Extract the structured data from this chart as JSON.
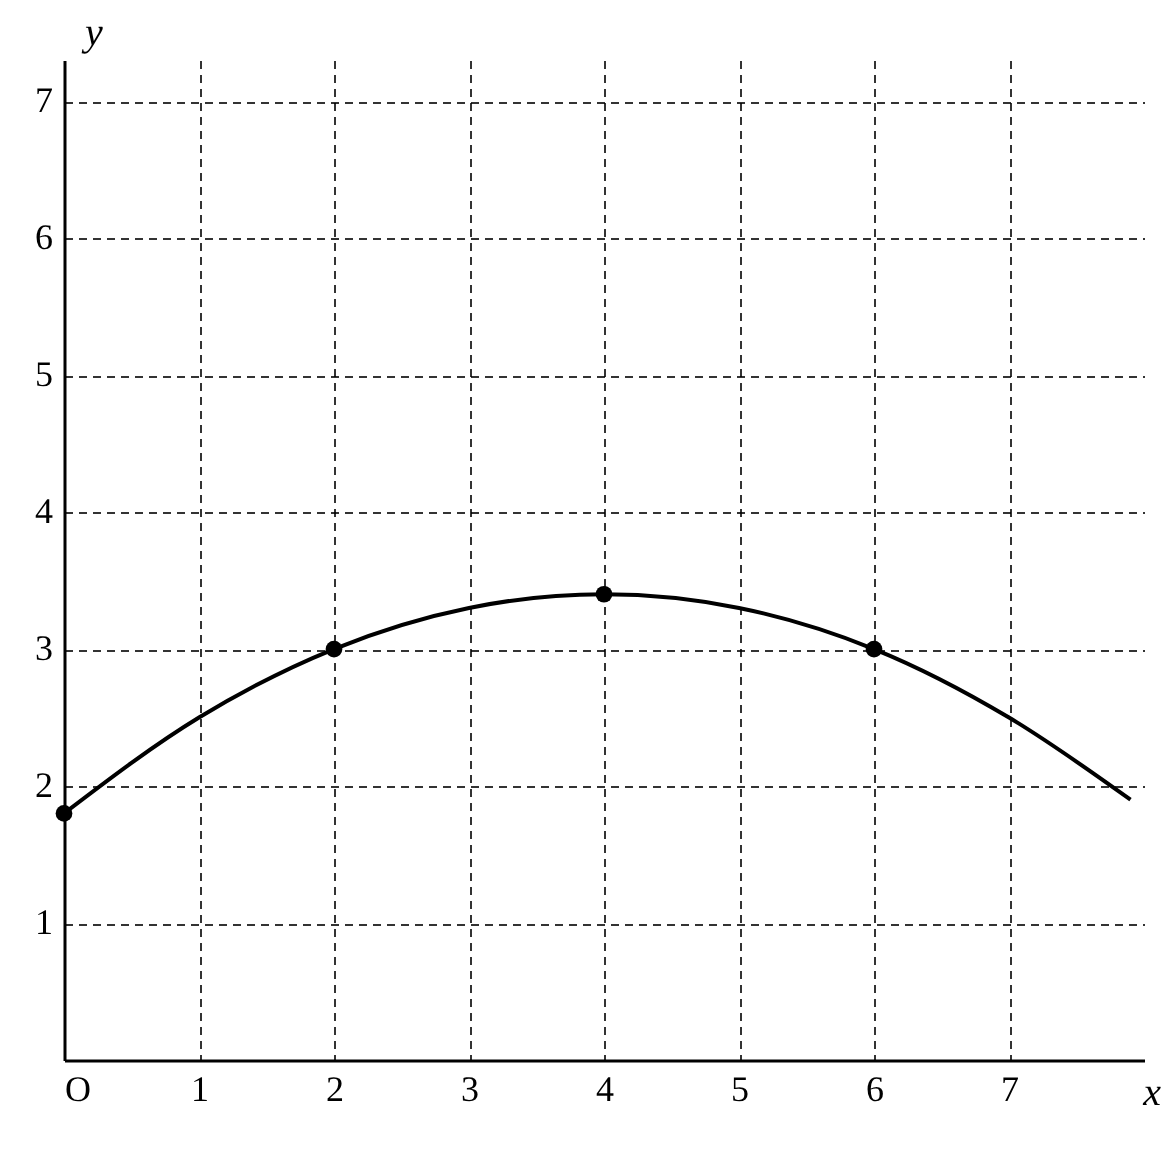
{
  "chart_data": {
    "type": "line",
    "xlabel": "x",
    "ylabel": "y",
    "xlim": [
      0,
      8
    ],
    "ylim": [
      0,
      7.3
    ],
    "xticks": [
      {
        "value": 0,
        "label": "O"
      },
      1,
      2,
      3,
      4,
      5,
      6,
      7
    ],
    "yticks": [
      1,
      2,
      3,
      4,
      5,
      6,
      7
    ],
    "grid": true,
    "series": [
      {
        "type": "line",
        "color": "#000000",
        "x": [
          0,
          1,
          2,
          3,
          4,
          5,
          6,
          7,
          7.9
        ],
        "values": [
          1.8,
          2.5,
          3,
          3.3,
          3.4,
          3.3,
          3,
          2.5,
          1.9
        ]
      },
      {
        "type": "scatter",
        "color": "#000000",
        "marker": "circle",
        "x": [
          0,
          2,
          4,
          6
        ],
        "values": [
          1.8,
          3,
          3.4,
          3
        ]
      }
    ]
  }
}
